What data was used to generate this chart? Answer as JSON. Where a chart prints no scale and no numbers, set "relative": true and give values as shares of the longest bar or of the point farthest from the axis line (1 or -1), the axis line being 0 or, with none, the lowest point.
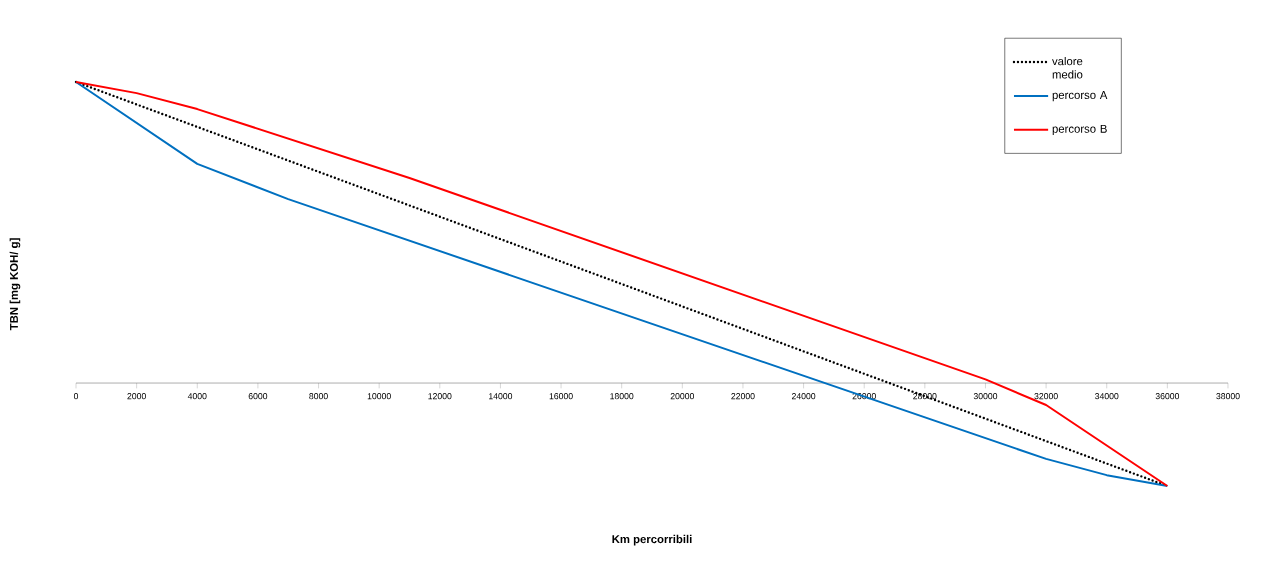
{
  "chart_data": {
    "type": "line",
    "relative": true,
    "xlabel": "Km  percorribili",
    "ylabel": "TBN  [mg KOH/ g]",
    "xlim": [
      0,
      38000
    ],
    "xticks": [
      0,
      2000,
      4000,
      6000,
      8000,
      10000,
      12000,
      14000,
      16000,
      18000,
      20000,
      22000,
      24000,
      26000,
      28000,
      30000,
      32000,
      34000,
      36000,
      38000
    ],
    "legend": "top right",
    "marker": "none",
    "series": [
      {
        "name": "valore medio",
        "color": "#000000",
        "line_style": "dotted",
        "x": [
          0,
          36000
        ],
        "values": [
          1,
          -0.342
        ]
      },
      {
        "name": "percorso A",
        "color": "#0070c0",
        "line_style": "solid",
        "x": [
          0,
          4000,
          7000,
          32000,
          34000,
          36000
        ],
        "values": [
          1,
          0.728,
          0.611,
          -0.252,
          -0.306,
          -0.342
        ]
      },
      {
        "name": "percorso B",
        "color": "#ff0000",
        "line_style": "solid",
        "x": [
          0,
          2000,
          4000,
          11000,
          30000,
          32000,
          36000
        ],
        "values": [
          1,
          0.963,
          0.91,
          0.681,
          0.012,
          -0.073,
          -0.342
        ]
      }
    ]
  }
}
